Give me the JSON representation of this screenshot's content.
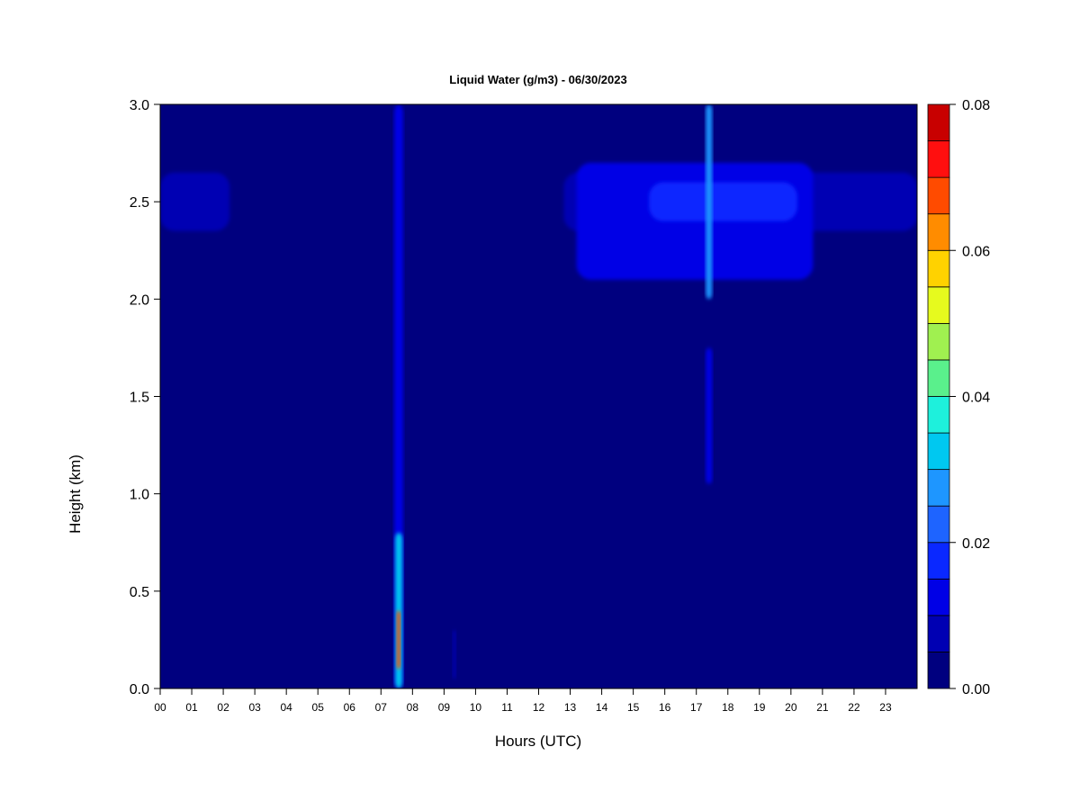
{
  "chart_data": {
    "type": "heatmap",
    "title": "Liquid Water (g/m3) - 06/30/2023",
    "xlabel": "Hours (UTC)",
    "ylabel": "Height (km)",
    "xlim": [
      0,
      24
    ],
    "ylim": [
      0,
      3.0
    ],
    "x_ticks": [
      "00",
      "01",
      "02",
      "03",
      "04",
      "05",
      "06",
      "07",
      "08",
      "09",
      "10",
      "11",
      "12",
      "13",
      "14",
      "15",
      "16",
      "17",
      "18",
      "19",
      "20",
      "21",
      "22",
      "23"
    ],
    "y_ticks": [
      "0.0",
      "0.5",
      "1.0",
      "1.5",
      "2.0",
      "2.5",
      "3.0"
    ],
    "colorbar": {
      "range": [
        0,
        0.08
      ],
      "tick_labels": [
        "0.00",
        "0.02",
        "0.04",
        "0.06",
        "0.08"
      ],
      "tick_values": [
        0,
        0.02,
        0.04,
        0.06,
        0.08
      ],
      "levels": 16,
      "colors": [
        "#00007F",
        "#0000B3",
        "#0000E6",
        "#0A28FF",
        "#1E64FF",
        "#1E96FF",
        "#00C8F0",
        "#1EF0DC",
        "#5AF08C",
        "#A0F050",
        "#E6FA1E",
        "#FFD200",
        "#FF8C00",
        "#FF4B00",
        "#FF0F0F",
        "#C80000",
        "#7F0000"
      ]
    },
    "features": [
      {
        "name": "cloud layer",
        "x_start": 0.0,
        "x_end": 2.2,
        "y_bottom": 2.35,
        "y_top": 2.65,
        "value": 0.006
      },
      {
        "name": "cloud layer",
        "x_start": 12.8,
        "x_end": 24.0,
        "y_bottom": 2.35,
        "y_top": 2.65,
        "value": 0.006
      },
      {
        "name": "cloud layer core",
        "x_start": 13.2,
        "x_end": 20.7,
        "y_bottom": 2.1,
        "y_top": 2.7,
        "value": 0.012
      },
      {
        "name": "cloud layer peak",
        "x_start": 15.5,
        "x_end": 20.2,
        "y_bottom": 2.4,
        "y_top": 2.6,
        "value": 0.016
      },
      {
        "name": "precipitation column",
        "x_start": 7.42,
        "x_end": 7.7,
        "y_bottom": 0.0,
        "y_top": 3.0,
        "value": 0.01
      },
      {
        "name": "precipitation column lower",
        "x_start": 7.45,
        "x_end": 7.68,
        "y_bottom": 0.0,
        "y_top": 0.8,
        "value": 0.03
      },
      {
        "name": "precipitation column max",
        "x_start": 7.5,
        "x_end": 7.62,
        "y_bottom": 0.1,
        "y_top": 0.4,
        "value": 0.065
      },
      {
        "name": "vertical streak",
        "x_start": 17.3,
        "x_end": 17.5,
        "y_bottom": 2.0,
        "y_top": 3.0,
        "value": 0.025
      },
      {
        "name": "vertical streak",
        "x_start": 17.3,
        "x_end": 17.5,
        "y_bottom": 1.05,
        "y_top": 1.75,
        "value": 0.012
      },
      {
        "name": "vertical streak",
        "x_start": 9.28,
        "x_end": 9.38,
        "y_bottom": 0.05,
        "y_top": 0.3,
        "value": 0.008
      }
    ]
  }
}
